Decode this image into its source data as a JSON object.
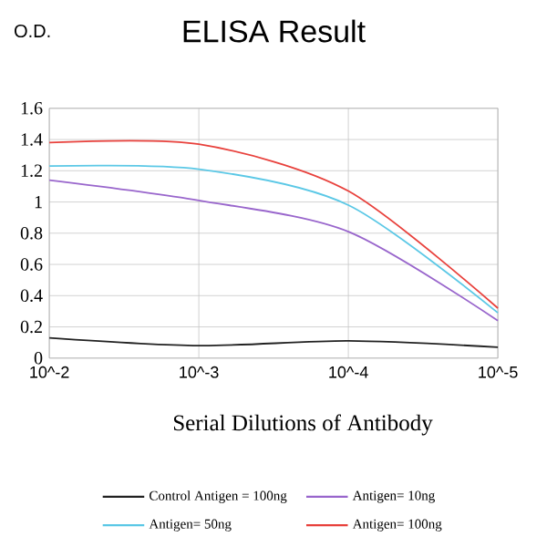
{
  "chart_data": {
    "type": "line",
    "title": "ELISA Result",
    "ylabel": "O.D.",
    "xlabel": "Serial Dilutions of Antibody",
    "categories": [
      "10^-2",
      "10^-3",
      "10^-4",
      "10^-5"
    ],
    "series": [
      {
        "name": "Control Antigen = 100ng",
        "color": "#222222",
        "values": [
          0.13,
          0.08,
          0.11,
          0.07
        ]
      },
      {
        "name": "Antigen= 10ng",
        "color": "#9966cc",
        "values": [
          1.14,
          1.01,
          0.81,
          0.24
        ]
      },
      {
        "name": "Antigen= 50ng",
        "color": "#5bc8e6",
        "values": [
          1.23,
          1.21,
          0.98,
          0.29
        ]
      },
      {
        "name": "Antigen= 100ng",
        "color": "#e8413c",
        "values": [
          1.38,
          1.37,
          1.07,
          0.32
        ]
      }
    ],
    "ylim": [
      0,
      1.6
    ],
    "yticks": [
      0,
      0.2,
      0.4,
      0.6,
      0.8,
      1,
      1.2,
      1.4,
      1.6
    ],
    "grid": true,
    "legend": "bottom",
    "marker": "none",
    "line_style": "solid"
  }
}
